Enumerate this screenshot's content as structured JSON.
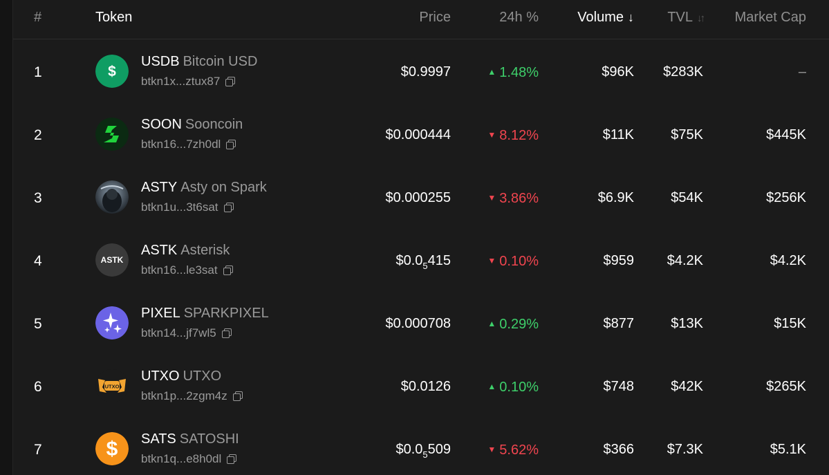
{
  "header": {
    "rank": "#",
    "token": "Token",
    "price": "Price",
    "change": "24h %",
    "volume": "Volume",
    "tvl": "TVL",
    "market_cap": "Market Cap"
  },
  "colors": {
    "up": "#3ecf6a",
    "down": "#f0454f",
    "muted": "#9a9a9a"
  },
  "rows": [
    {
      "rank": "1",
      "symbol": "USDB",
      "name": "Bitcoin USD",
      "address": "btkn1x...ztux87",
      "price_main": "$0.9997",
      "price_sub": "",
      "price_tail": "",
      "change": "1.48%",
      "direction": "up",
      "volume": "$96K",
      "tvl": "$283K",
      "market_cap": "–",
      "logo": "dollar-green-icon"
    },
    {
      "rank": "2",
      "symbol": "SOON",
      "name": "Sooncoin",
      "address": "btkn16...7zh0dl",
      "price_main": "$0.000444",
      "price_sub": "",
      "price_tail": "",
      "change": "8.12%",
      "direction": "down",
      "volume": "$11K",
      "tvl": "$75K",
      "market_cap": "$445K",
      "logo": "soon-s-icon"
    },
    {
      "rank": "3",
      "symbol": "ASTY",
      "name": "Asty on Spark",
      "address": "btkn1u...3t6sat",
      "price_main": "$0.000255",
      "price_sub": "",
      "price_tail": "",
      "change": "3.86%",
      "direction": "down",
      "volume": "$6.9K",
      "tvl": "$54K",
      "market_cap": "$256K",
      "logo": "asty-avatar-icon"
    },
    {
      "rank": "4",
      "symbol": "ASTK",
      "name": "Asterisk",
      "address": "btkn16...le3sat",
      "price_main": "$0.0",
      "price_sub": "5",
      "price_tail": "415",
      "change": "0.10%",
      "direction": "down",
      "volume": "$959",
      "tvl": "$4.2K",
      "market_cap": "$4.2K",
      "logo": "astk-text-icon",
      "logo_text": "ASTK"
    },
    {
      "rank": "5",
      "symbol": "PIXEL",
      "name": "SPARKPIXEL",
      "address": "btkn14...jf7wl5",
      "price_main": "$0.000708",
      "price_sub": "",
      "price_tail": "",
      "change": "0.29%",
      "direction": "up",
      "volume": "$877",
      "tvl": "$13K",
      "market_cap": "$15K",
      "logo": "sparkle-stars-icon"
    },
    {
      "rank": "6",
      "symbol": "UTXO",
      "name": "UTXO",
      "address": "btkn1p...2zgm4z",
      "price_main": "$0.0126",
      "price_sub": "",
      "price_tail": "",
      "change": "0.10%",
      "direction": "up",
      "volume": "$748",
      "tvl": "$42K",
      "market_cap": "$265K",
      "logo": "utxo-wings-icon",
      "logo_text": "UTXO"
    },
    {
      "rank": "7",
      "symbol": "SATS",
      "name": "SATOSHI",
      "address": "btkn1q...e8h0dl",
      "price_main": "$0.0",
      "price_sub": "5",
      "price_tail": "509",
      "change": "5.62%",
      "direction": "down",
      "volume": "$366",
      "tvl": "$7.3K",
      "market_cap": "$5.1K",
      "logo": "dollar-orange-icon"
    }
  ]
}
